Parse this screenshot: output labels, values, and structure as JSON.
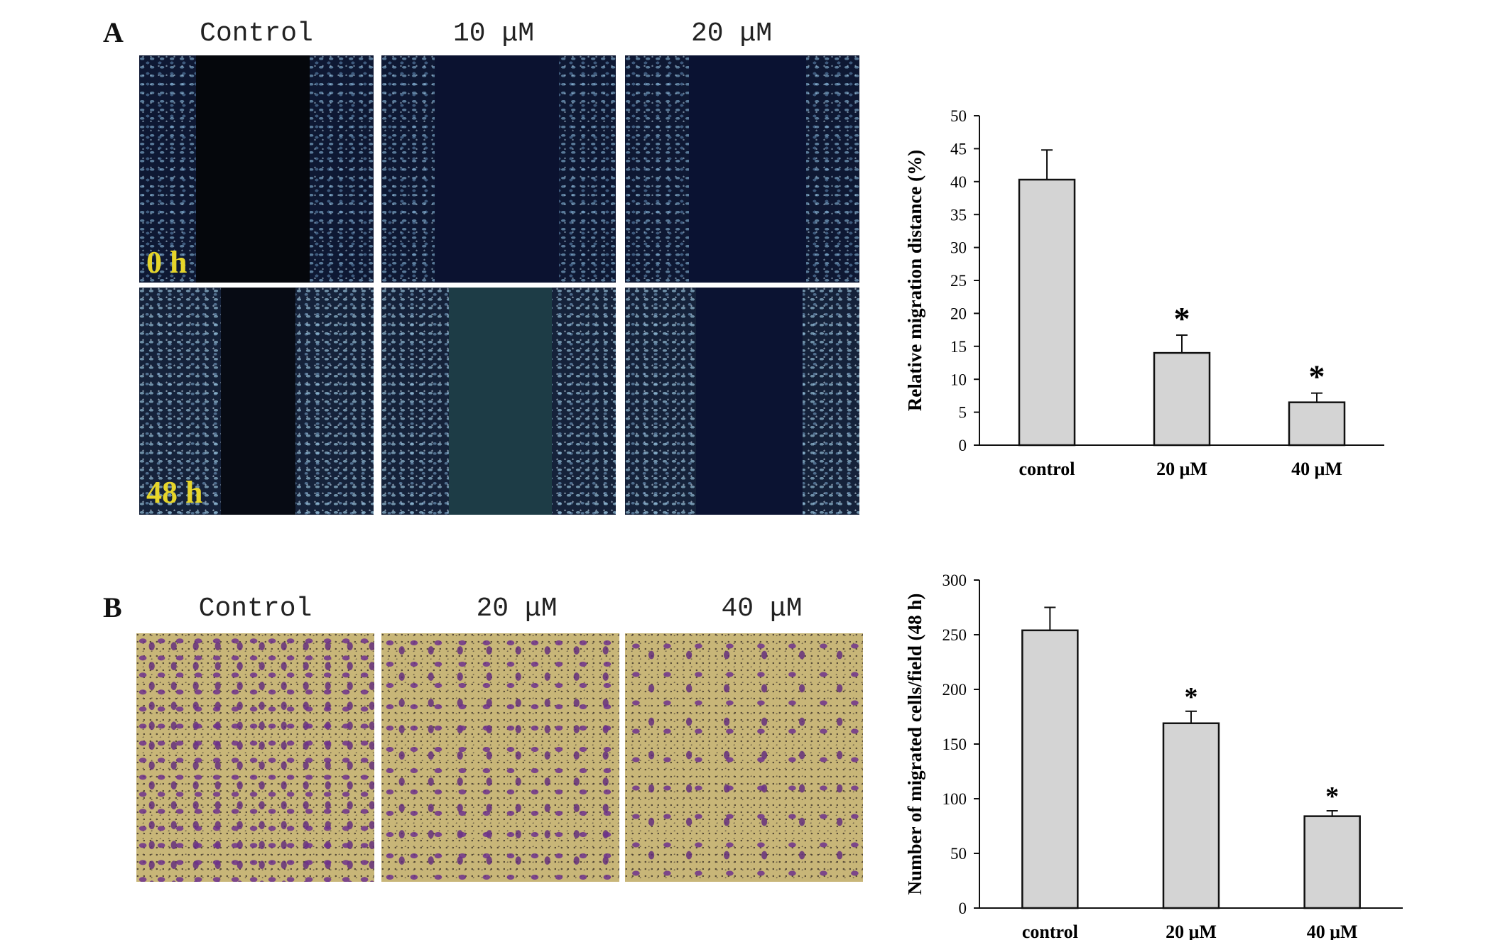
{
  "panel_a": {
    "letter": "A",
    "image_columns": [
      "Control",
      "10 μM",
      "20 μM"
    ],
    "time_labels": [
      "0 h",
      "48 h"
    ]
  },
  "panel_b": {
    "letter": "B",
    "image_columns": [
      "Control",
      "20 μM",
      "40 μM"
    ]
  },
  "colors": {
    "bar_fill": "#d4d4d4",
    "bar_stroke": "#111111",
    "time_label": "#e6d52a"
  },
  "chart_data": [
    {
      "type": "bar",
      "categories": [
        "control",
        "20 μM",
        "40 μM"
      ],
      "values": [
        40.3,
        14.0,
        6.5
      ],
      "error": [
        4.5,
        2.7,
        1.4
      ],
      "significance": [
        "",
        "*",
        "*"
      ],
      "ylabel": "Relative migration distance (%)",
      "xlabel": "",
      "ylim": [
        0,
        50
      ],
      "yticks": [
        0,
        5,
        10,
        15,
        20,
        25,
        30,
        35,
        40,
        45,
        50
      ],
      "grid": false
    },
    {
      "type": "bar",
      "categories": [
        "control",
        "20 μM",
        "40 μM"
      ],
      "values": [
        254,
        169,
        84
      ],
      "error": [
        21,
        11,
        5
      ],
      "significance": [
        "",
        "*",
        "*"
      ],
      "ylabel": "Number of migrated cells/field (48 h)",
      "xlabel": "",
      "ylim": [
        0,
        300
      ],
      "yticks": [
        0,
        50,
        100,
        150,
        200,
        250,
        300
      ],
      "grid": false
    }
  ]
}
